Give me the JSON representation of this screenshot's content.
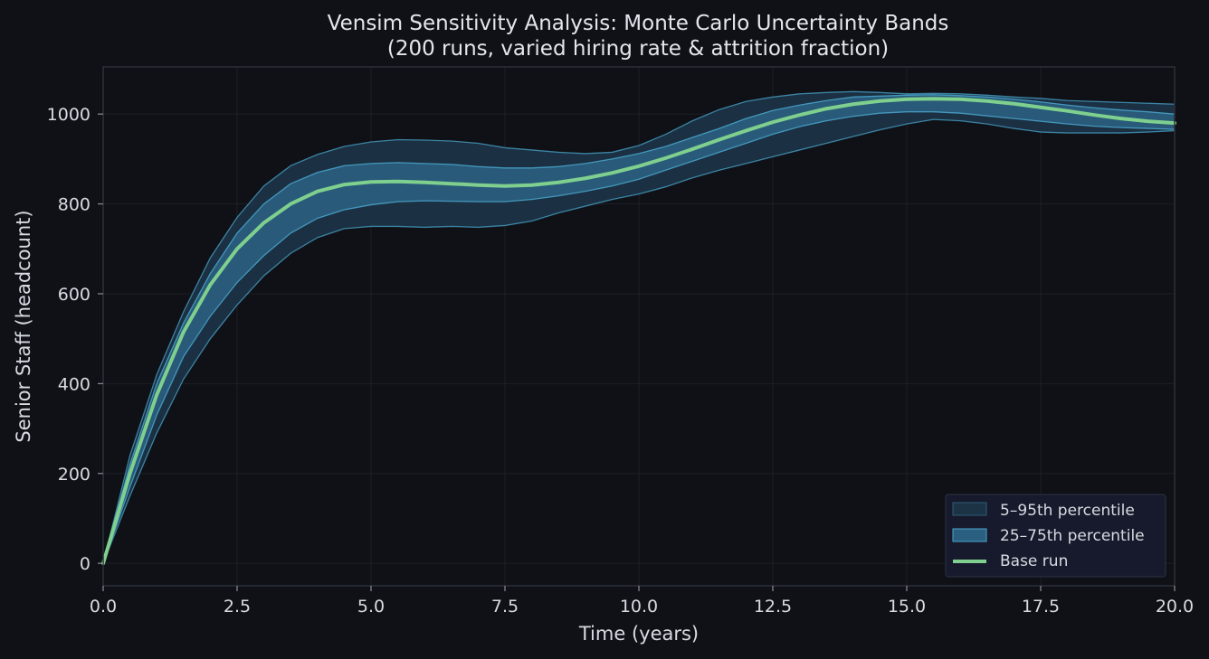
{
  "chart_data": {
    "type": "area",
    "title": "Vensim Sensitivity Analysis: Monte Carlo Uncertainty Bands",
    "subtitle": "(200 runs, varied hiring rate & attrition fraction)",
    "xlabel": "Time (years)",
    "ylabel": "Senior Staff (headcount)",
    "xlim": [
      0,
      20
    ],
    "ylim": [
      -50,
      1105
    ],
    "x_ticks": [
      "0.0",
      "2.5",
      "5.0",
      "7.5",
      "10.0",
      "12.5",
      "15.0",
      "17.5",
      "20.0"
    ],
    "y_ticks": [
      "0",
      "200",
      "400",
      "600",
      "800",
      "1000"
    ],
    "grid": true,
    "legend_position": "bottom-right",
    "x": [
      0,
      0.5,
      1,
      1.5,
      2,
      2.5,
      3,
      3.5,
      4,
      4.5,
      5,
      5.5,
      6,
      6.5,
      7,
      7.5,
      8,
      8.5,
      9,
      9.5,
      10,
      10.5,
      11,
      11.5,
      12,
      12.5,
      13,
      13.5,
      14,
      14.5,
      15,
      15.5,
      16,
      16.5,
      17,
      17.5,
      18,
      18.5,
      19,
      19.5,
      20
    ],
    "series": [
      {
        "name": "5–95th percentile",
        "kind": "band",
        "low": [
          0,
          150,
          290,
          410,
          500,
          575,
          640,
          690,
          725,
          745,
          750,
          750,
          748,
          750,
          748,
          752,
          762,
          780,
          795,
          810,
          822,
          838,
          858,
          875,
          890,
          905,
          920,
          935,
          950,
          965,
          978,
          988,
          985,
          978,
          968,
          960,
          958,
          958,
          958,
          960,
          963
        ],
        "high": [
          0,
          240,
          420,
          560,
          680,
          770,
          840,
          885,
          910,
          928,
          938,
          943,
          942,
          940,
          935,
          925,
          920,
          915,
          912,
          915,
          930,
          955,
          985,
          1010,
          1028,
          1038,
          1045,
          1048,
          1050,
          1048,
          1045,
          1046,
          1045,
          1042,
          1038,
          1035,
          1030,
          1028,
          1026,
          1024,
          1022
        ]
      },
      {
        "name": "25–75th percentile",
        "kind": "band",
        "low": [
          0,
          170,
          330,
          460,
          550,
          625,
          685,
          735,
          768,
          787,
          798,
          805,
          807,
          806,
          805,
          805,
          810,
          818,
          828,
          840,
          855,
          875,
          895,
          915,
          935,
          955,
          972,
          985,
          995,
          1002,
          1005,
          1005,
          1002,
          996,
          990,
          984,
          978,
          973,
          970,
          968,
          966
        ],
        "high": [
          0,
          220,
          400,
          535,
          645,
          735,
          800,
          845,
          870,
          885,
          890,
          892,
          890,
          888,
          883,
          880,
          880,
          883,
          890,
          900,
          912,
          928,
          948,
          968,
          990,
          1008,
          1020,
          1030,
          1038,
          1040,
          1042,
          1043,
          1041,
          1038,
          1033,
          1027,
          1020,
          1014,
          1009,
          1005,
          1000
        ]
      },
      {
        "name": "Base run",
        "kind": "line",
        "values": [
          0,
          200,
          375,
          515,
          620,
          700,
          758,
          800,
          828,
          843,
          849,
          850,
          848,
          845,
          842,
          840,
          842,
          848,
          857,
          869,
          884,
          902,
          922,
          943,
          963,
          982,
          998,
          1012,
          1022,
          1029,
          1033,
          1034,
          1033,
          1029,
          1023,
          1015,
          1007,
          998,
          990,
          984,
          980
        ]
      }
    ],
    "colors": {
      "background": "#0f1116",
      "outer_band": "#1c3346",
      "inner_band": "#2b5f80",
      "band_edge": "#4aa6cc",
      "base_line": "#7fcf8e",
      "grid": "#1d2027",
      "axes": "#2c3038",
      "legend_bg": "#161a2c"
    }
  }
}
